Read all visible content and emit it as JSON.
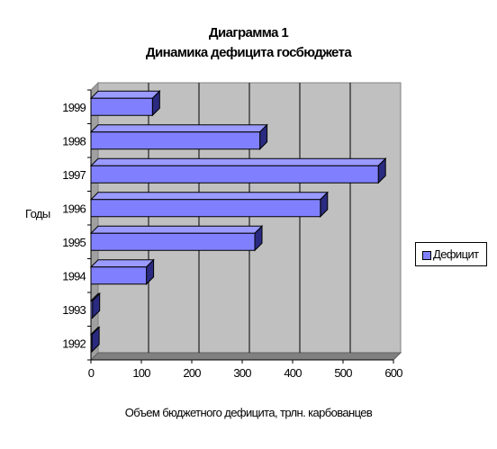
{
  "chart_data": {
    "type": "bar",
    "orientation": "horizontal",
    "style": "3d",
    "title": "Диаграмма 1",
    "subtitle": "Динамика дефицита госбюджета",
    "ylabel": "Годы",
    "xlabel": "Объем бюджетного дефицита, трлн. карбованцев",
    "categories": [
      "1992",
      "1993",
      "1994",
      "1995",
      "1996",
      "1997",
      "1998",
      "1999"
    ],
    "series": [
      {
        "name": "Дефицит",
        "values": [
          2,
          3,
          110,
          325,
          455,
          570,
          335,
          122
        ]
      }
    ],
    "xlim": [
      0,
      600
    ],
    "xticks": [
      0,
      100,
      200,
      300,
      400,
      500,
      600
    ],
    "grid": true,
    "legend": "right",
    "colors": {
      "bar_front": "#8080ff",
      "bar_top": "#9a9aff",
      "bar_side": "#2a2a80",
      "plot_bg": "#c0c0c0"
    }
  }
}
